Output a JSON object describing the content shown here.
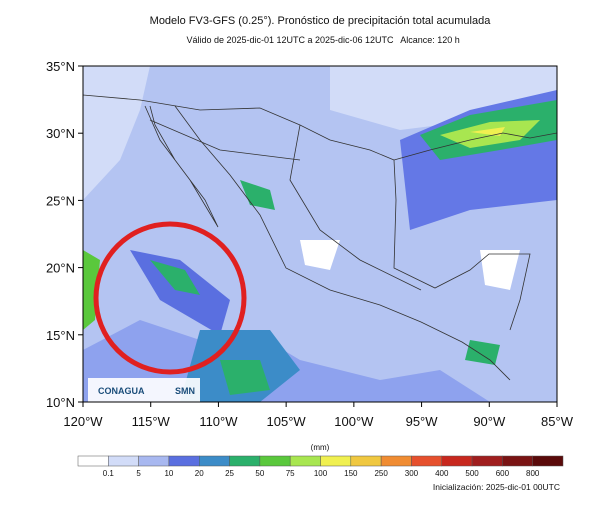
{
  "header": {
    "title": "Modelo FV3-GFS (0.25°). Pronóstico de precipitación total acumulada",
    "valid": "Válido de 2025-dic-01 12UTC a 2025-dic-06 12UTC",
    "range": "Alcance: 120 h"
  },
  "map": {
    "lat_labels": [
      "35°N",
      "30°N",
      "25°N",
      "20°N",
      "15°N",
      "10°N"
    ],
    "lon_labels": [
      "120°W",
      "115°W",
      "110°W",
      "105°W",
      "100°W",
      "95°W",
      "90°W",
      "85°W"
    ],
    "logos": [
      "CONAGUA",
      "SMN"
    ]
  },
  "colorbar": {
    "unit": "(mm)",
    "labels": [
      0.1,
      5,
      10,
      20,
      25,
      50,
      75,
      100,
      150,
      250,
      300,
      400,
      500,
      600,
      800
    ],
    "colors": [
      "#ffffff",
      "#d2dcf8",
      "#a8b8f0",
      "#5a6fe0",
      "#3c8cc8",
      "#2bb06b",
      "#5ac83c",
      "#a8e650",
      "#f0f050",
      "#f0c840",
      "#f08c32",
      "#e6502d",
      "#c8281e",
      "#a01e1e",
      "#7a1414",
      "#5a0a0a"
    ]
  },
  "footer": {
    "init": "Inicialización: 2025-dic-01 00UTC"
  }
}
